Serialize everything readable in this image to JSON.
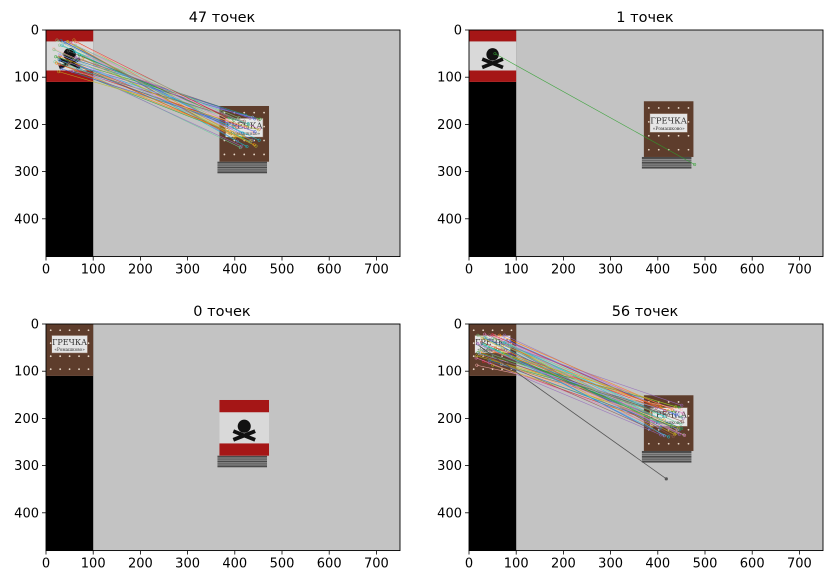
{
  "chart_data": [
    {
      "type": "image",
      "title": "47 точек",
      "xlim": [
        0,
        750
      ],
      "ylim": [
        480,
        0
      ],
      "xticks": [
        0,
        100,
        200,
        300,
        400,
        500,
        600,
        700
      ],
      "yticks": [
        0,
        100,
        200,
        300,
        400
      ],
      "left_box": "poison",
      "right_box": "grechka",
      "right_box_center": [
        420,
        220
      ],
      "right_box_rotated": false,
      "matches": 47
    },
    {
      "type": "image",
      "title": "1 точек",
      "xlim": [
        0,
        750
      ],
      "ylim": [
        480,
        0
      ],
      "xticks": [
        0,
        100,
        200,
        300,
        400,
        500,
        600,
        700
      ],
      "yticks": [
        0,
        100,
        200,
        300,
        400
      ],
      "left_box": "poison",
      "right_box": "grechka",
      "right_box_center": [
        423,
        210
      ],
      "right_box_rotated": true,
      "matches": 1
    },
    {
      "type": "image",
      "title": "0 точек",
      "xlim": [
        0,
        750
      ],
      "ylim": [
        480,
        0
      ],
      "xticks": [
        0,
        100,
        200,
        300,
        400,
        500,
        600,
        700
      ],
      "yticks": [
        0,
        100,
        200,
        300,
        400
      ],
      "left_box": "grechka",
      "right_box": "poison",
      "right_box_center": [
        420,
        220
      ],
      "right_box_rotated": false,
      "matches": 0
    },
    {
      "type": "image",
      "title": "56 точек",
      "xlim": [
        0,
        750
      ],
      "ylim": [
        480,
        0
      ],
      "xticks": [
        0,
        100,
        200,
        300,
        400,
        500,
        600,
        700
      ],
      "yticks": [
        0,
        100,
        200,
        300,
        400
      ],
      "left_box": "grechka",
      "right_box": "grechka",
      "right_box_center": [
        423,
        210
      ],
      "right_box_rotated": false,
      "matches": 56
    }
  ],
  "box_labels": {
    "grechka_line1": "ГРЕЧКА",
    "grechka_line2": "«Ромашково»"
  },
  "colors": {
    "background_gray": "#c3c3c3",
    "left_black": "#000000",
    "poison_red": "#a51616",
    "poison_white": "#d9d9d9",
    "grechka_brown": "#5e3d2c"
  }
}
